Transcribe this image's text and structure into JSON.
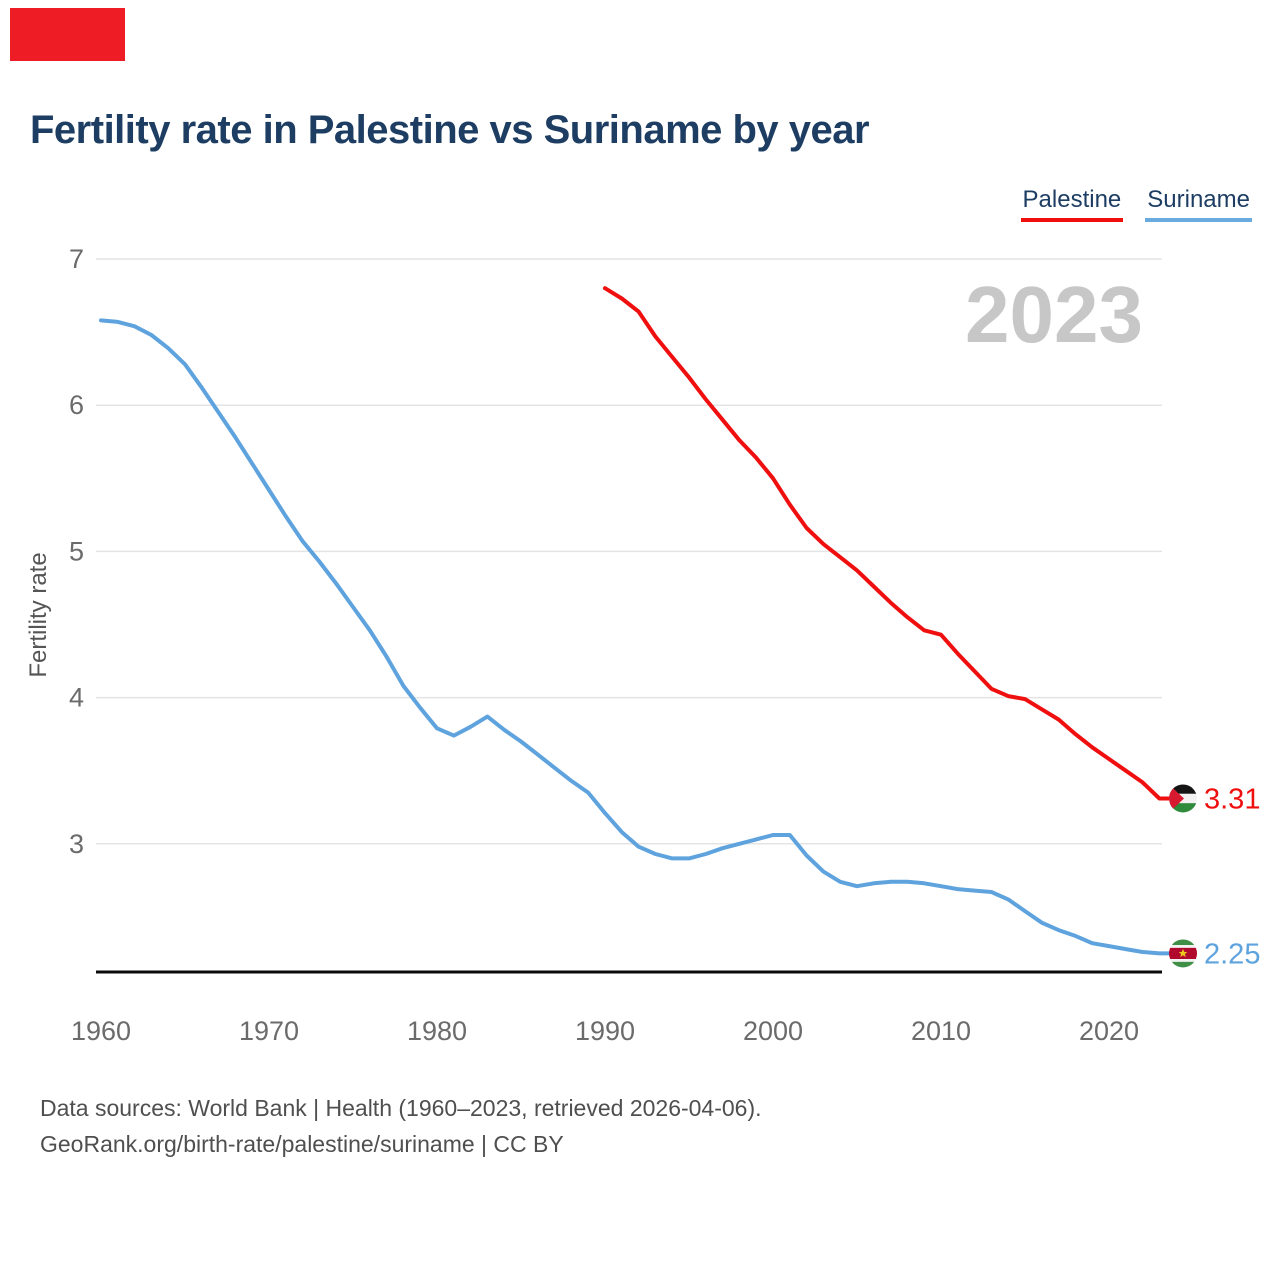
{
  "header": {
    "title": "Fertility rate in Palestine vs Suriname by year"
  },
  "legend": {
    "items": [
      {
        "label": "Palestine",
        "color": "#ef0f0f"
      },
      {
        "label": "Suriname",
        "color": "#6aabdf"
      }
    ]
  },
  "watermark": "2023",
  "chart_data": {
    "type": "line",
    "title": "Fertility rate in Palestine vs Suriname by year",
    "xlabel": "",
    "ylabel": "Fertility rate",
    "x_ticks": [
      1960,
      1970,
      1980,
      1990,
      2000,
      2010,
      2020
    ],
    "y_ticks": [
      3,
      4,
      5,
      6,
      7
    ],
    "xlim": [
      1960,
      2023
    ],
    "ylim": [
      2.1,
      7
    ],
    "grid": "horizontal",
    "legend_position": "top-right",
    "series": [
      {
        "name": "Palestine",
        "color": "#ef0f0f",
        "start_year": 1990,
        "end_label": "3.31",
        "icon": "palestine-flag-icon",
        "values": [
          6.8,
          6.73,
          6.64,
          6.47,
          6.33,
          6.19,
          6.04,
          5.9,
          5.76,
          5.64,
          5.5,
          5.32,
          5.16,
          5.05,
          4.96,
          4.87,
          4.76,
          4.65,
          4.55,
          4.46,
          4.43,
          4.3,
          4.18,
          4.06,
          4.01,
          3.99,
          3.92,
          3.85,
          3.75,
          3.66,
          3.58,
          3.5,
          3.42,
          3.31
        ]
      },
      {
        "name": "Suriname",
        "color": "#5ea3dd",
        "start_year": 1960,
        "end_label": "2.25",
        "icon": "suriname-flag-icon",
        "values": [
          6.58,
          6.57,
          6.54,
          6.48,
          6.39,
          6.28,
          6.12,
          5.95,
          5.78,
          5.6,
          5.42,
          5.24,
          5.07,
          4.93,
          4.78,
          4.62,
          4.46,
          4.28,
          4.08,
          3.93,
          3.79,
          3.74,
          3.8,
          3.87,
          3.78,
          3.7,
          3.61,
          3.52,
          3.43,
          3.35,
          3.21,
          3.08,
          2.98,
          2.93,
          2.9,
          2.9,
          2.93,
          2.97,
          3.0,
          3.03,
          3.06,
          3.06,
          2.92,
          2.81,
          2.74,
          2.71,
          2.73,
          2.74,
          2.74,
          2.73,
          2.71,
          2.69,
          2.68,
          2.67,
          2.62,
          2.54,
          2.46,
          2.41,
          2.37,
          2.32,
          2.3,
          2.28,
          2.26,
          2.25
        ]
      }
    ]
  },
  "footer": {
    "line1": "Data sources: World Bank | Health (1960–2023, retrieved 2026-04-06).",
    "line2": "GeoRank.org/birth-rate/palestine/suriname | CC BY"
  }
}
